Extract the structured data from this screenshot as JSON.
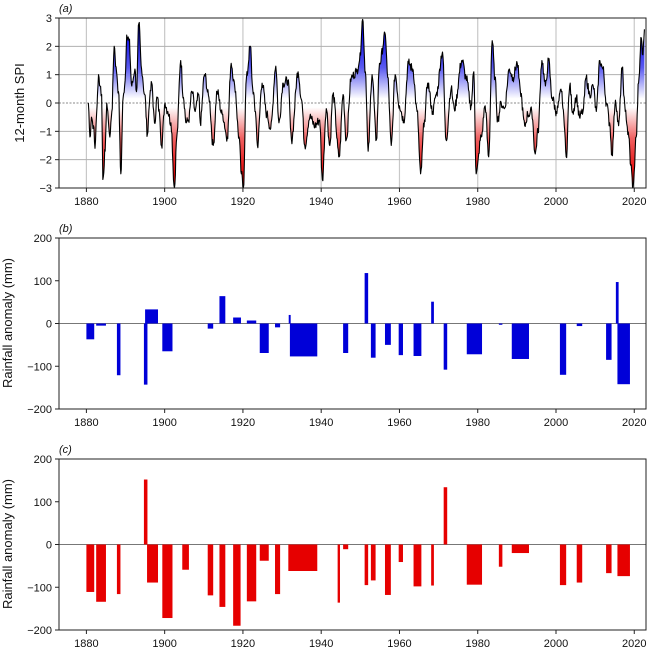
{
  "chart_data": [
    {
      "panel": "a",
      "panel_label": "(a)",
      "type": "area",
      "ylabel": "12-month SPI",
      "xlabel": "",
      "xlim": [
        1873,
        2023
      ],
      "ylim": [
        -3,
        3
      ],
      "xticks": [
        1880,
        1900,
        1920,
        1940,
        1960,
        1980,
        2000,
        2020
      ],
      "yticks": [
        -3,
        -2,
        -1,
        0,
        1,
        2,
        3
      ],
      "ytick_labels": [
        "−3",
        "−2",
        "−1",
        "0",
        "1",
        "2",
        "3"
      ],
      "grid": true,
      "reference_line": 0,
      "colors": {
        "positive": "#0000e6",
        "negative": "#e60000",
        "line": "#000000"
      },
      "series": [
        {
          "name": "12-month SPI",
          "x": [
            1880.5,
            1880.9,
            1881.3,
            1881.8,
            1882.2,
            1882.6,
            1883.1,
            1883.5,
            1883.9,
            1884.2,
            1884.8,
            1885.2,
            1885.6,
            1886.0,
            1886.5,
            1887.1,
            1887.7,
            1888.2,
            1888.8,
            1889.4,
            1889.9,
            1890.3,
            1890.9,
            1891.6,
            1892.4,
            1892.8,
            1893.4,
            1894.1,
            1894.9,
            1895.6,
            1896.2,
            1896.7,
            1897.4,
            1898.1,
            1898.7,
            1899.2,
            1900.1,
            1900.8,
            1901.6,
            1902.5,
            1903.1,
            1904.1,
            1904.8,
            1905.5,
            1906.1,
            1907.0,
            1907.8,
            1908.7,
            1909.1,
            1910.2,
            1911.3,
            1912.4,
            1913.4,
            1914.7,
            1916.0,
            1917.0,
            1917.9,
            1919.0,
            1919.6,
            1920.1,
            1920.9,
            1921.9,
            1922.5,
            1923.2,
            1923.7,
            1924.9,
            1926.1,
            1927.1,
            1928.4,
            1929.2,
            1930.3,
            1931.5,
            1932.4,
            1934.1,
            1935.0,
            1935.8,
            1937.1,
            1938.4,
            1939.6,
            1940.3,
            1941.3,
            1942.2,
            1943.0,
            1944.6,
            1945.6,
            1946.4,
            1947.7,
            1949.0,
            1949.8,
            1950.6,
            1951.3,
            1952.0,
            1953.0,
            1954.1,
            1954.9,
            1956.4,
            1957.0,
            1957.9,
            1958.9,
            1960.0,
            1961.1,
            1962.3,
            1963.4,
            1964.5,
            1965.4,
            1966.4,
            1967.2,
            1968.5,
            1969.4,
            1971.0,
            1971.9,
            1973.2,
            1974.0,
            1976.0,
            1977.0,
            1978.3,
            1979.0,
            1979.6,
            1980.9,
            1981.9,
            1982.8,
            1983.7,
            1984.4,
            1985.1,
            1986.0,
            1986.8,
            1988.1,
            1989.0,
            1990.1,
            1990.9,
            1992.0,
            1992.8,
            1993.8,
            1994.7,
            1995.4,
            1996.4,
            1997.3,
            1998.1,
            1999.0,
            2000.1,
            2001.4,
            2002.0,
            2002.6,
            2003.5,
            2004.3,
            2005.2,
            2006.0,
            2006.9,
            2007.7,
            2008.6,
            2009.5,
            2010.3,
            2011.2,
            2012.0,
            2012.9,
            2013.7,
            2014.3,
            2015.2,
            2016.0,
            2016.9,
            2017.7,
            2018.6,
            2019.1,
            2019.7,
            2020.5,
            2021.1,
            2021.8,
            2022.2,
            2022.6
          ],
          "y": [
            0.0,
            -1.2,
            -0.5,
            -0.8,
            -1.6,
            -0.4,
            1.0,
            0.6,
            0.3,
            -2.7,
            -1.7,
            0.0,
            -0.6,
            -1.2,
            -0.3,
            2.0,
            1.1,
            0.4,
            -2.5,
            0.2,
            0.8,
            2.4,
            2.2,
            0.6,
            1.2,
            0.4,
            2.8,
            1.2,
            0.3,
            -1.1,
            0.2,
            0.7,
            -0.7,
            0.2,
            -0.4,
            -1.5,
            0.0,
            -0.3,
            -0.7,
            -3.0,
            -1.2,
            1.5,
            0.2,
            -0.7,
            -0.6,
            0.4,
            -0.3,
            0.3,
            -0.7,
            1.0,
            0.2,
            -1.5,
            0.4,
            -0.4,
            -1.2,
            1.4,
            0.6,
            -1.2,
            -2.5,
            -3.0,
            0.9,
            2.0,
            0.5,
            -0.3,
            -1.5,
            0.7,
            -0.4,
            -0.9,
            1.3,
            -0.7,
            0.7,
            0.8,
            -1.3,
            1.1,
            0.1,
            -1.5,
            -0.5,
            -0.8,
            -0.6,
            -2.7,
            -0.2,
            -1.5,
            0.3,
            -1.9,
            0.3,
            -1.3,
            0.9,
            1.1,
            1.5,
            2.95,
            1.1,
            -1.7,
            1.0,
            -1.3,
            1.4,
            2.4,
            0.9,
            -1.5,
            1.0,
            -0.1,
            -0.6,
            1.4,
            1.2,
            -0.3,
            -2.5,
            -0.6,
            0.7,
            -0.3,
            0.3,
            1.8,
            -1.3,
            0.5,
            -0.2,
            1.5,
            0.9,
            -0.1,
            1.1,
            -2.5,
            -1.2,
            -0.1,
            -1.9,
            2.2,
            0.9,
            -0.6,
            0.0,
            -0.2,
            1.2,
            0.9,
            1.4,
            0.4,
            -0.8,
            -0.4,
            -0.3,
            -1.8,
            -1.0,
            1.5,
            0.6,
            1.5,
            0.2,
            -0.3,
            0.4,
            -0.5,
            -1.9,
            0.6,
            -0.3,
            0.2,
            -0.5,
            -0.3,
            0.9,
            0.3,
            0.6,
            -0.3,
            1.5,
            1.2,
            0.0,
            -0.7,
            -1.8,
            0.1,
            -0.8,
            1.2,
            -0.3,
            -1.2,
            -2.2,
            -3.0,
            -1.2,
            0.7,
            2.3,
            1.7,
            2.6
          ]
        }
      ]
    },
    {
      "panel": "b",
      "panel_label": "(b)",
      "type": "bar",
      "ylabel": "Rainfall anomaly (mm)",
      "xlabel": "",
      "xlim": [
        1873,
        2023
      ],
      "ylim": [
        -200,
        200
      ],
      "xticks": [
        1880,
        1900,
        1920,
        1940,
        1960,
        1980,
        2000,
        2020
      ],
      "yticks": [
        -200,
        -100,
        0,
        100,
        200
      ],
      "ytick_labels": [
        "−200",
        "−100",
        "0",
        "100",
        "200"
      ],
      "grid": false,
      "color": "#0000d8",
      "bars": [
        {
          "start": 1880.0,
          "end": 1882.0,
          "value": -37
        },
        {
          "start": 1882.5,
          "end": 1885.0,
          "value": -5
        },
        {
          "start": 1887.8,
          "end": 1888.7,
          "value": -121
        },
        {
          "start": 1894.7,
          "end": 1895.6,
          "value": -143
        },
        {
          "start": 1895.0,
          "end": 1898.3,
          "value": 33
        },
        {
          "start": 1899.4,
          "end": 1902.0,
          "value": -65
        },
        {
          "start": 1911.0,
          "end": 1912.4,
          "value": -12
        },
        {
          "start": 1914.0,
          "end": 1915.5,
          "value": 64
        },
        {
          "start": 1917.5,
          "end": 1919.5,
          "value": 14
        },
        {
          "start": 1921.0,
          "end": 1923.4,
          "value": 7
        },
        {
          "start": 1924.3,
          "end": 1926.6,
          "value": -69
        },
        {
          "start": 1928.2,
          "end": 1929.5,
          "value": -9
        },
        {
          "start": 1931.7,
          "end": 1932.2,
          "value": 20
        },
        {
          "start": 1932.0,
          "end": 1939.0,
          "value": -77
        },
        {
          "start": 1945.6,
          "end": 1946.9,
          "value": -69
        },
        {
          "start": 1951.1,
          "end": 1952.0,
          "value": 118
        },
        {
          "start": 1952.7,
          "end": 1953.9,
          "value": -80
        },
        {
          "start": 1956.3,
          "end": 1957.8,
          "value": -50
        },
        {
          "start": 1959.8,
          "end": 1960.9,
          "value": -74
        },
        {
          "start": 1963.6,
          "end": 1965.6,
          "value": -76
        },
        {
          "start": 1968.1,
          "end": 1968.8,
          "value": 51
        },
        {
          "start": 1971.3,
          "end": 1972.2,
          "value": -108
        },
        {
          "start": 1977.2,
          "end": 1981.1,
          "value": -72
        },
        {
          "start": 1985.4,
          "end": 1986.3,
          "value": -3
        },
        {
          "start": 1988.7,
          "end": 1993.1,
          "value": -83
        },
        {
          "start": 2001.0,
          "end": 2002.6,
          "value": -120
        },
        {
          "start": 2005.3,
          "end": 2006.7,
          "value": -6
        },
        {
          "start": 2012.8,
          "end": 2014.2,
          "value": -85
        },
        {
          "start": 2015.3,
          "end": 2016.0,
          "value": 97
        },
        {
          "start": 2015.7,
          "end": 2018.9,
          "value": -142
        }
      ]
    },
    {
      "panel": "c",
      "panel_label": "(c)",
      "type": "bar",
      "ylabel": "Rainfall anomaly (mm)",
      "xlabel": "",
      "xlim": [
        1873,
        2023
      ],
      "ylim": [
        -200,
        200
      ],
      "xticks": [
        1880,
        1900,
        1920,
        1940,
        1960,
        1980,
        2000,
        2020
      ],
      "yticks": [
        -200,
        -100,
        0,
        100,
        200
      ],
      "ytick_labels": [
        "−200",
        "−100",
        "0",
        "100",
        "200"
      ],
      "grid": false,
      "color": "#e60000",
      "bars": [
        {
          "start": 1880.0,
          "end": 1882.0,
          "value": -111
        },
        {
          "start": 1882.5,
          "end": 1885.0,
          "value": -134
        },
        {
          "start": 1887.8,
          "end": 1888.7,
          "value": -116
        },
        {
          "start": 1894.7,
          "end": 1895.6,
          "value": 152
        },
        {
          "start": 1895.5,
          "end": 1898.3,
          "value": -89
        },
        {
          "start": 1899.4,
          "end": 1902.0,
          "value": -172
        },
        {
          "start": 1904.5,
          "end": 1906.2,
          "value": -59
        },
        {
          "start": 1911.0,
          "end": 1912.4,
          "value": -119
        },
        {
          "start": 1914.0,
          "end": 1915.5,
          "value": -146
        },
        {
          "start": 1917.5,
          "end": 1919.4,
          "value": -190
        },
        {
          "start": 1921.0,
          "end": 1923.4,
          "value": -133
        },
        {
          "start": 1924.3,
          "end": 1926.6,
          "value": -38
        },
        {
          "start": 1928.2,
          "end": 1929.5,
          "value": -116
        },
        {
          "start": 1931.6,
          "end": 1939.0,
          "value": -62
        },
        {
          "start": 1944.2,
          "end": 1944.8,
          "value": -136
        },
        {
          "start": 1945.6,
          "end": 1946.9,
          "value": -11
        },
        {
          "start": 1951.1,
          "end": 1952.0,
          "value": -95
        },
        {
          "start": 1952.7,
          "end": 1953.9,
          "value": -84
        },
        {
          "start": 1956.3,
          "end": 1957.8,
          "value": -118
        },
        {
          "start": 1959.8,
          "end": 1960.9,
          "value": -41
        },
        {
          "start": 1963.6,
          "end": 1965.6,
          "value": -98
        },
        {
          "start": 1968.1,
          "end": 1968.8,
          "value": -96
        },
        {
          "start": 1971.3,
          "end": 1972.2,
          "value": 134
        },
        {
          "start": 1977.2,
          "end": 1981.1,
          "value": -94
        },
        {
          "start": 1985.4,
          "end": 1986.3,
          "value": -52
        },
        {
          "start": 1988.7,
          "end": 1993.1,
          "value": -20
        },
        {
          "start": 2001.0,
          "end": 2002.6,
          "value": -95
        },
        {
          "start": 2005.3,
          "end": 2006.7,
          "value": -89
        },
        {
          "start": 2012.8,
          "end": 2014.2,
          "value": -67
        },
        {
          "start": 2015.7,
          "end": 2018.9,
          "value": -74
        }
      ]
    }
  ]
}
